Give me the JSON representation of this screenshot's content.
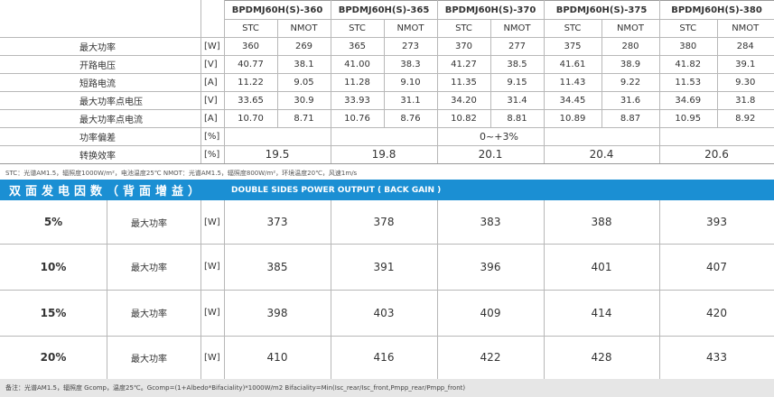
{
  "table": {
    "models": [
      "BPDMJ60H(S)-360",
      "BPDMJ60H(S)-365",
      "BPDMJ60H(S)-370",
      "BPDMJ60H(S)-375",
      "BPDMJ60H(S)-380"
    ],
    "conditions": [
      "STC",
      "NMOT"
    ],
    "rows": [
      {
        "label": "最大功率",
        "unit": "[W]",
        "values": [
          360,
          269,
          365,
          273,
          370,
          277,
          375,
          280,
          380,
          284
        ]
      },
      {
        "label": "开路电压",
        "unit": "[V]",
        "values": [
          40.77,
          38.1,
          "41.00",
          38.3,
          41.27,
          38.5,
          41.61,
          38.9,
          41.82,
          39.1
        ]
      },
      {
        "label": "短路电流",
        "unit": "[A]",
        "values": [
          11.22,
          9.05,
          11.28,
          "9.10",
          11.35,
          9.15,
          11.43,
          9.22,
          11.53,
          "9.30"
        ]
      },
      {
        "label": "最大功率点电压",
        "unit": "[V]",
        "values": [
          33.65,
          30.9,
          33.93,
          31.1,
          "34.20",
          31.4,
          34.45,
          31.6,
          34.69,
          31.8
        ]
      },
      {
        "label": "最大功率点电流",
        "unit": "[A]",
        "values": [
          "10.70",
          8.71,
          10.76,
          8.76,
          10.82,
          8.81,
          10.89,
          8.87,
          10.95,
          8.92
        ]
      }
    ],
    "tolerance": {
      "label": "功率偏差",
      "unit": "[%]",
      "value": "0~+3%"
    },
    "efficiency": {
      "label": "转换效率",
      "unit": "[%]",
      "values": [
        19.5,
        19.8,
        20.1,
        20.4,
        20.6
      ]
    }
  },
  "footnote": "STC：光谱AM1.5，辐照度1000W/m²，电池温度25℃    NMOT：光谱AM1.5，辐照度800W/m²，环境温度20℃，风速1m/s",
  "bifacial": {
    "title_cn": "双面发电因数（背面增益）",
    "title_en": "DOUBLE SIDES POWER OUTPUT ( BACK GAIN )",
    "rows": [
      {
        "gain": "5%",
        "label": "最大功率",
        "unit": "[W]",
        "values": [
          373,
          378,
          383,
          388,
          393
        ]
      },
      {
        "gain": "10%",
        "label": "最大功率",
        "unit": "[W]",
        "values": [
          385,
          391,
          396,
          401,
          407
        ]
      },
      {
        "gain": "15%",
        "label": "最大功率",
        "unit": "[W]",
        "values": [
          398,
          403,
          409,
          414,
          420
        ]
      },
      {
        "gain": "20%",
        "label": "最大功率",
        "unit": "[W]",
        "values": [
          410,
          416,
          422,
          428,
          433
        ]
      }
    ]
  },
  "note": "备注：光谱AM1.5，辐照度 Gcomp，温度25℃。Gcomp=(1+Albedo*Bifaciality)*1000W/m2 Bifaciality=Min(Isc_rear/Isc_front,Pmpp_rear/Pmpp_front)"
}
